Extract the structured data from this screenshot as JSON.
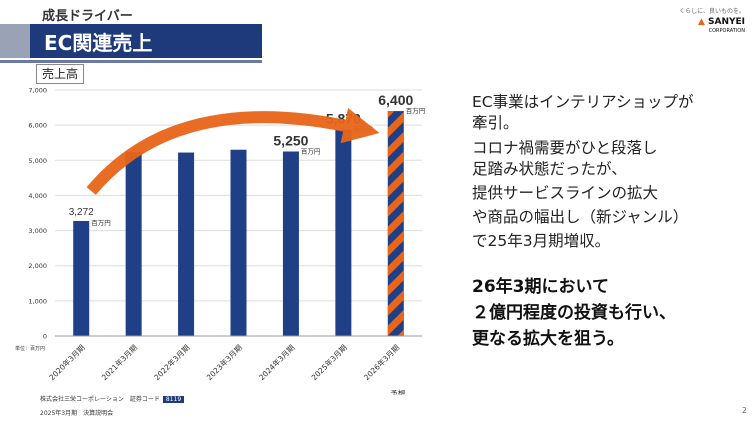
{
  "header": {
    "tag": "成長ドライバー",
    "title": "EC関連売上"
  },
  "logo": {
    "tagline": "くらしに、良いものを。",
    "brand": "SANYEI",
    "brand_sub": "CORPORATION"
  },
  "chart_data": {
    "type": "bar",
    "title": "売上高",
    "categories": [
      "2020年3月期",
      "2021年3月期",
      "2022年3月期",
      "2023年3月期",
      "2024年3月期",
      "2025年3月期",
      "2026年3月期"
    ],
    "values": [
      3272,
      5230,
      5220,
      5300,
      5250,
      5870,
      6400
    ],
    "forecast_category": "2026年3月期",
    "forecast_label": "予想",
    "value_labels": {
      "0": "3,272",
      "4": "5,250",
      "5": "5,870",
      "6": "6,400"
    },
    "value_unit": "百万円",
    "unit_note": "単位：百万円",
    "ylim": [
      0,
      7000
    ],
    "yticks": [
      "0",
      "1,000",
      "2,000",
      "3,000",
      "4,000",
      "5,000",
      "6,000",
      "7,000"
    ],
    "grid": true,
    "colors": {
      "bar": "#1f3f86",
      "forecast_stripe": "#e8651a",
      "arrow": "#e8651a"
    }
  },
  "side_text": {
    "lines": [
      "EC事業はインテリアショップが",
      "牽引。",
      "コロナ禍需要がひと段落し",
      "足踏み状態だったが、",
      "提供サービスラインの拡大",
      "や商品の幅出し（新ジャンル）",
      "で25年3月期増収。"
    ],
    "emphasis": [
      "26年3期において",
      "２億円程度の投資も行い、",
      "更なる拡大を狙う。"
    ]
  },
  "footer": {
    "company": "株式会社三栄コーポレーション　証券コード",
    "code": "8119",
    "event": "2025年3月期　決算説明会",
    "page": "2"
  }
}
